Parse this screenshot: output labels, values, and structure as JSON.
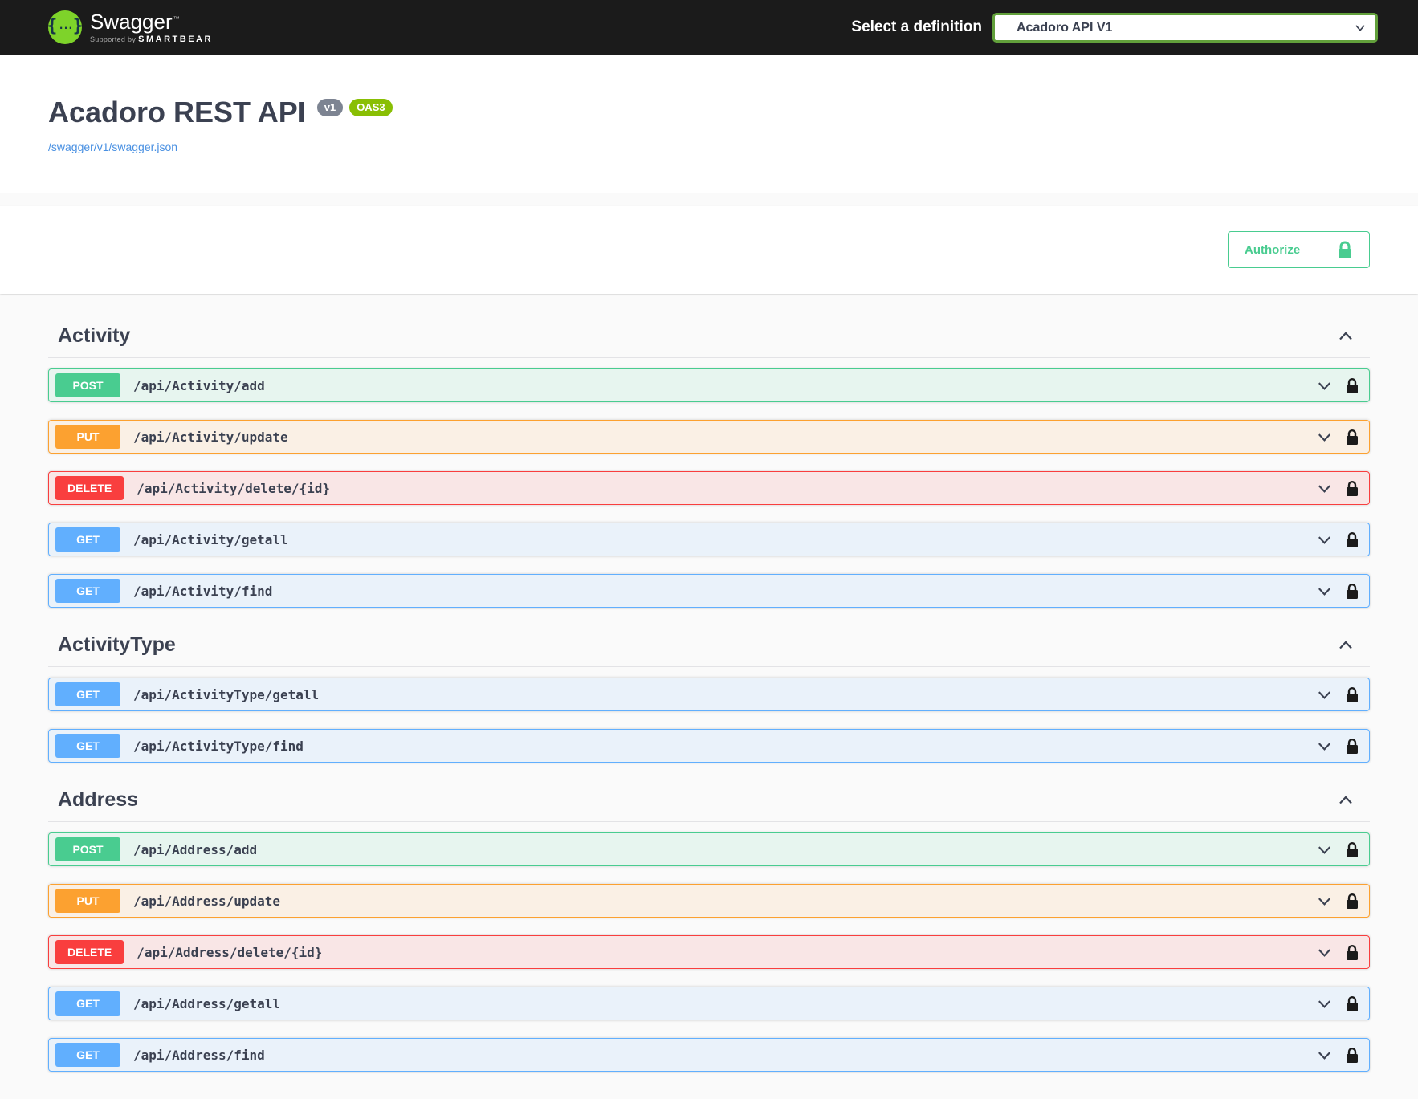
{
  "topbar": {
    "brand": "Swagger",
    "brand_tm": "™",
    "supported_by_prefix": "Supported by",
    "supported_by_brand": "SMARTBEAR",
    "definition_label": "Select a definition",
    "definition_selected": "Acadoro API V1"
  },
  "info": {
    "title": "Acadoro REST API",
    "version_badge": "v1",
    "oas_badge": "OAS3",
    "spec_link": "/swagger/v1/swagger.json"
  },
  "auth": {
    "authorize_label": "Authorize"
  },
  "icons": {
    "logo": "swagger-braces-icon",
    "definition_select": "chevron-down-icon",
    "authorize_button": "lock-icon",
    "section_header": "chevron-up-icon",
    "operation_row_expand": "chevron-down-icon",
    "operation_row_auth": "lock-icon"
  },
  "colors": {
    "topbar_bg": "#1b1b1b",
    "logo_green": "#7ed32a",
    "select_border_green": "#62a03b",
    "accent_green": "#49cc90",
    "get_blue": "#61affe",
    "post_green": "#49cc90",
    "put_orange": "#fca130",
    "delete_red": "#f93e3e",
    "oas3_badge_green": "#89bf04",
    "version_badge_gray": "#7d8492",
    "link_blue": "#4990e2",
    "heading_text": "#3b4151",
    "page_bg": "#fafafa"
  },
  "sections": [
    {
      "name": "Activity",
      "operations": [
        {
          "method": "POST",
          "path": "/api/Activity/add"
        },
        {
          "method": "PUT",
          "path": "/api/Activity/update"
        },
        {
          "method": "DELETE",
          "path": "/api/Activity/delete/{id}"
        },
        {
          "method": "GET",
          "path": "/api/Activity/getall"
        },
        {
          "method": "GET",
          "path": "/api/Activity/find"
        }
      ]
    },
    {
      "name": "ActivityType",
      "operations": [
        {
          "method": "GET",
          "path": "/api/ActivityType/getall"
        },
        {
          "method": "GET",
          "path": "/api/ActivityType/find"
        }
      ]
    },
    {
      "name": "Address",
      "operations": [
        {
          "method": "POST",
          "path": "/api/Address/add"
        },
        {
          "method": "PUT",
          "path": "/api/Address/update"
        },
        {
          "method": "DELETE",
          "path": "/api/Address/delete/{id}"
        },
        {
          "method": "GET",
          "path": "/api/Address/getall"
        },
        {
          "method": "GET",
          "path": "/api/Address/find"
        }
      ]
    }
  ]
}
